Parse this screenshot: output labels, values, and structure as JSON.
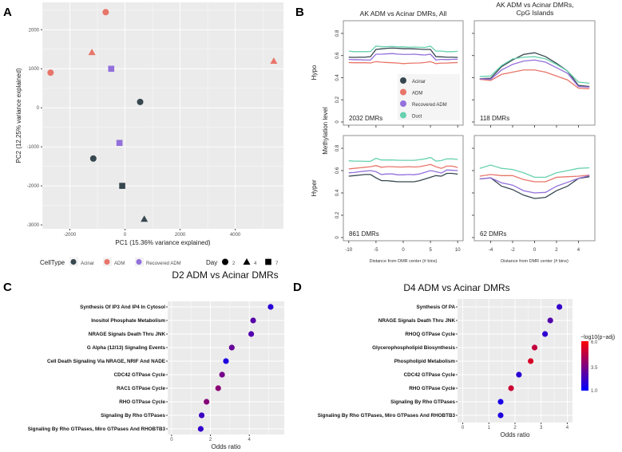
{
  "panel_labels": [
    "A",
    "B",
    "C",
    "D"
  ],
  "colors": {
    "Acinar": "#37474f",
    "ADM": "#e8756a",
    "Recovered ADM": "#9370db",
    "Duct": "#66d1ae",
    "grid_bg": "#ebebeb",
    "low": "#0000ff",
    "high": "#ff0000"
  },
  "chart_data": [
    {
      "id": "A",
      "type": "scatter",
      "xlabel": "PC1 (15.36% variance explained)",
      "ylabel": "PC2 (12.25% variance explained)",
      "xlim": [
        -3000,
        5750
      ],
      "ylim": [
        -3100,
        2700
      ],
      "xticks": [
        -2000,
        0,
        2000,
        4000
      ],
      "yticks": [
        -3000,
        -2000,
        -1000,
        0,
        1000,
        2000
      ],
      "grid": true,
      "legend": {
        "position": "bottom",
        "celltype_title": "CellType",
        "celltypes": [
          "Acinar",
          "ADM",
          "Recovered ADM"
        ],
        "day_title": "Day",
        "days": [
          "2",
          "4",
          "7"
        ]
      },
      "points": [
        {
          "x": -700,
          "y": 2450,
          "celltype": "ADM",
          "day": "2"
        },
        {
          "x": -1200,
          "y": 1420,
          "celltype": "ADM",
          "day": "4"
        },
        {
          "x": -2700,
          "y": 900,
          "celltype": "ADM",
          "day": "2"
        },
        {
          "x": 5400,
          "y": 1200,
          "celltype": "ADM",
          "day": "4"
        },
        {
          "x": -500,
          "y": 1000,
          "celltype": "Recovered ADM",
          "day": "7"
        },
        {
          "x": 550,
          "y": 150,
          "celltype": "Acinar",
          "day": "2"
        },
        {
          "x": -200,
          "y": -900,
          "celltype": "Recovered ADM",
          "day": "7"
        },
        {
          "x": -1150,
          "y": -1300,
          "celltype": "Acinar",
          "day": "2"
        },
        {
          "x": -100,
          "y": -2000,
          "celltype": "Acinar",
          "day": "7"
        },
        {
          "x": 700,
          "y": -2850,
          "celltype": "Acinar",
          "day": "4"
        }
      ]
    },
    {
      "id": "B",
      "type": "line",
      "ylabel": "Methylation level",
      "row_labels": [
        "Hypo",
        "Hyper"
      ],
      "column_titles": [
        "AK ADM vs Acinar DMRs, All",
        "AK ADM vs Acinar DMRs,\nCpG Islands"
      ],
      "xlabel": "Distance from DMR center (# bins)",
      "ylim": [
        0,
        0.9
      ],
      "yticks": [
        0.0,
        0.2,
        0.4,
        0.6,
        0.8
      ],
      "legend": {
        "position": "inside top-left panel",
        "entries": [
          "Acinar",
          "ADM",
          "Recovered ADM",
          "Duct"
        ]
      },
      "panels": [
        {
          "row": "Hypo",
          "column": 0,
          "annotation": "2032 DMRs",
          "x": [
            -10,
            -9,
            -8,
            -7,
            -6,
            -5,
            -4,
            -3,
            -2,
            -1,
            0,
            1,
            2,
            3,
            4,
            5,
            6,
            7,
            8,
            9,
            10
          ],
          "xticks": [
            -10,
            -5,
            0,
            5,
            10
          ],
          "series": [
            {
              "name": "Acinar",
              "values": [
                0.585,
                0.583,
                0.585,
                0.585,
                0.59,
                0.655,
                0.66,
                0.665,
                0.668,
                0.665,
                0.662,
                0.662,
                0.66,
                0.658,
                0.655,
                0.655,
                0.59,
                0.588,
                0.585,
                0.585,
                0.583
              ]
            },
            {
              "name": "ADM",
              "values": [
                0.537,
                0.535,
                0.535,
                0.535,
                0.533,
                0.545,
                0.54,
                0.537,
                0.535,
                0.532,
                0.527,
                0.53,
                0.532,
                0.533,
                0.537,
                0.545,
                0.527,
                0.532,
                0.532,
                0.535,
                0.537
              ]
            },
            {
              "name": "Recovered ADM",
              "values": [
                0.565,
                0.562,
                0.562,
                0.56,
                0.56,
                0.612,
                0.612,
                0.615,
                0.618,
                0.613,
                0.61,
                0.61,
                0.612,
                0.608,
                0.605,
                0.612,
                0.56,
                0.565,
                0.563,
                0.565,
                0.567
              ]
            },
            {
              "name": "Duct",
              "values": [
                0.64,
                0.635,
                0.635,
                0.635,
                0.637,
                0.685,
                0.68,
                0.68,
                0.682,
                0.678,
                0.678,
                0.675,
                0.677,
                0.675,
                0.673,
                0.685,
                0.64,
                0.64,
                0.635,
                0.635,
                0.638
              ]
            }
          ]
        },
        {
          "row": "Hypo",
          "column": 1,
          "annotation": "118 DMRs",
          "x": [
            -5,
            -4,
            -3,
            -2,
            -1,
            0,
            1,
            2,
            3,
            4,
            5
          ],
          "xticks": [
            -4,
            -2,
            0,
            2,
            4
          ],
          "series": [
            {
              "name": "Acinar",
              "values": [
                0.39,
                0.395,
                0.5,
                0.56,
                0.61,
                0.625,
                0.59,
                0.53,
                0.46,
                0.33,
                0.32
              ]
            },
            {
              "name": "ADM",
              "values": [
                0.385,
                0.375,
                0.43,
                0.45,
                0.47,
                0.47,
                0.45,
                0.415,
                0.38,
                0.305,
                0.3
              ]
            },
            {
              "name": "Recovered ADM",
              "values": [
                0.39,
                0.385,
                0.47,
                0.52,
                0.55,
                0.56,
                0.54,
                0.49,
                0.44,
                0.32,
                0.315
              ]
            },
            {
              "name": "Duct",
              "values": [
                0.41,
                0.415,
                0.51,
                0.57,
                0.585,
                0.59,
                0.57,
                0.52,
                0.46,
                0.36,
                0.35
              ]
            }
          ]
        },
        {
          "row": "Hyper",
          "column": 0,
          "annotation": "861 DMRs",
          "x": [
            -10,
            -9,
            -8,
            -7,
            -6,
            -5,
            -4,
            -3,
            -2,
            -1,
            0,
            1,
            2,
            3,
            4,
            5,
            6,
            7,
            8,
            9,
            10
          ],
          "xticks": [
            -10,
            -5,
            0,
            5,
            10
          ],
          "series": [
            {
              "name": "Acinar",
              "values": [
                0.55,
                0.555,
                0.56,
                0.565,
                0.565,
                0.535,
                0.51,
                0.51,
                0.505,
                0.5,
                0.5,
                0.5,
                0.5,
                0.51,
                0.525,
                0.54,
                0.555,
                0.55,
                0.575,
                0.575,
                0.568
              ]
            },
            {
              "name": "ADM",
              "values": [
                0.615,
                0.62,
                0.625,
                0.63,
                0.635,
                0.645,
                0.63,
                0.635,
                0.635,
                0.632,
                0.632,
                0.635,
                0.632,
                0.635,
                0.645,
                0.655,
                0.635,
                0.62,
                0.64,
                0.64,
                0.628
              ]
            },
            {
              "name": "Recovered ADM",
              "values": [
                0.58,
                0.583,
                0.59,
                0.595,
                0.6,
                0.59,
                0.565,
                0.57,
                0.57,
                0.562,
                0.562,
                0.565,
                0.563,
                0.57,
                0.585,
                0.6,
                0.59,
                0.578,
                0.605,
                0.603,
                0.6
              ]
            },
            {
              "name": "Duct",
              "values": [
                0.688,
                0.685,
                0.685,
                0.683,
                0.683,
                0.71,
                0.695,
                0.695,
                0.695,
                0.693,
                0.692,
                0.692,
                0.692,
                0.698,
                0.705,
                0.718,
                0.685,
                0.69,
                0.705,
                0.705,
                0.7
              ]
            }
          ]
        },
        {
          "row": "Hyper",
          "column": 1,
          "annotation": "62 DMRs",
          "x": [
            -5,
            -4,
            -3,
            -2,
            -1,
            0,
            1,
            2,
            3,
            4,
            5
          ],
          "xticks": [
            -4,
            -2,
            0,
            2,
            4
          ],
          "series": [
            {
              "name": "Acinar",
              "values": [
                0.525,
                0.535,
                0.46,
                0.43,
                0.38,
                0.35,
                0.36,
                0.42,
                0.46,
                0.53,
                0.545
              ]
            },
            {
              "name": "ADM",
              "values": [
                0.55,
                0.565,
                0.555,
                0.555,
                0.52,
                0.5,
                0.5,
                0.54,
                0.545,
                0.55,
                0.56
              ]
            },
            {
              "name": "Recovered ADM",
              "values": [
                0.525,
                0.535,
                0.49,
                0.47,
                0.42,
                0.4,
                0.405,
                0.46,
                0.495,
                0.53,
                0.555
              ]
            },
            {
              "name": "Duct",
              "values": [
                0.62,
                0.65,
                0.62,
                0.61,
                0.58,
                0.54,
                0.54,
                0.58,
                0.6,
                0.62,
                0.625
              ]
            }
          ]
        }
      ]
    },
    {
      "id": "C",
      "type": "scatter",
      "title": "D2 ADM vs Acinar DMRs",
      "xlabel": "Odds ratio",
      "xlim": [
        -0.2,
        5.8
      ],
      "xticks": [
        0,
        2,
        4
      ],
      "grid": true,
      "categories": [
        "Synthesis Of IP3 And IP4 In Cytosol",
        "Inositol Phosphate Metabolism",
        "NRAGE Signals Death Thru JNK",
        "G Alpha (12/13) Signaling Events",
        "Cell Death Signaling Via NRAGE, NRIF And NADE",
        "CDC42 GTPase Cycle",
        "RAC1 GTPase Cycle",
        "RHO GTPase Cycle",
        "Signaling By Rho GTPases",
        "Signaling By Rho GTPases, Miro GTPases And RHOBTB3"
      ],
      "odds_ratio": [
        5.1,
        4.2,
        4.1,
        3.1,
        2.8,
        2.6,
        2.4,
        1.8,
        1.55,
        1.5
      ],
      "neg_log10_padj": [
        1.8,
        2.7,
        2.6,
        3.0,
        1.6,
        3.3,
        3.7,
        3.6,
        2.2,
        2.0
      ]
    },
    {
      "id": "D",
      "type": "scatter",
      "title": "D4 ADM vs Acinar DMRs",
      "xlabel": "Odds ratio",
      "xlim": [
        -0.2,
        4.2
      ],
      "xticks": [
        0,
        1,
        2,
        3,
        4
      ],
      "grid": true,
      "categories": [
        "Synthesis Of PA",
        "NRAGE Signals Death Thru JNK",
        "RHOQ GTPase Cycle",
        "Glycerophospholipid Biosynthesis",
        "Phospholipid Metabolism",
        "CDC42 GTPase Cycle",
        "RHO GTPase Cycle",
        "Signaling By Rho GTPases",
        "Signaling By Rho GTPases, Miro GTPases And RHOBTB3"
      ],
      "odds_ratio": [
        3.7,
        3.35,
        3.15,
        2.75,
        2.6,
        2.15,
        1.85,
        1.45,
        1.45
      ],
      "neg_log10_padj": [
        2.0,
        2.6,
        1.9,
        4.8,
        5.2,
        1.8,
        5.0,
        1.5,
        1.6
      ],
      "colorbar": {
        "title": "−log10(p−adj)",
        "range": [
          1.0,
          6.0
        ],
        "ticks": [
          "6.0",
          "3.5",
          "1.0"
        ],
        "position": "right"
      }
    }
  ]
}
